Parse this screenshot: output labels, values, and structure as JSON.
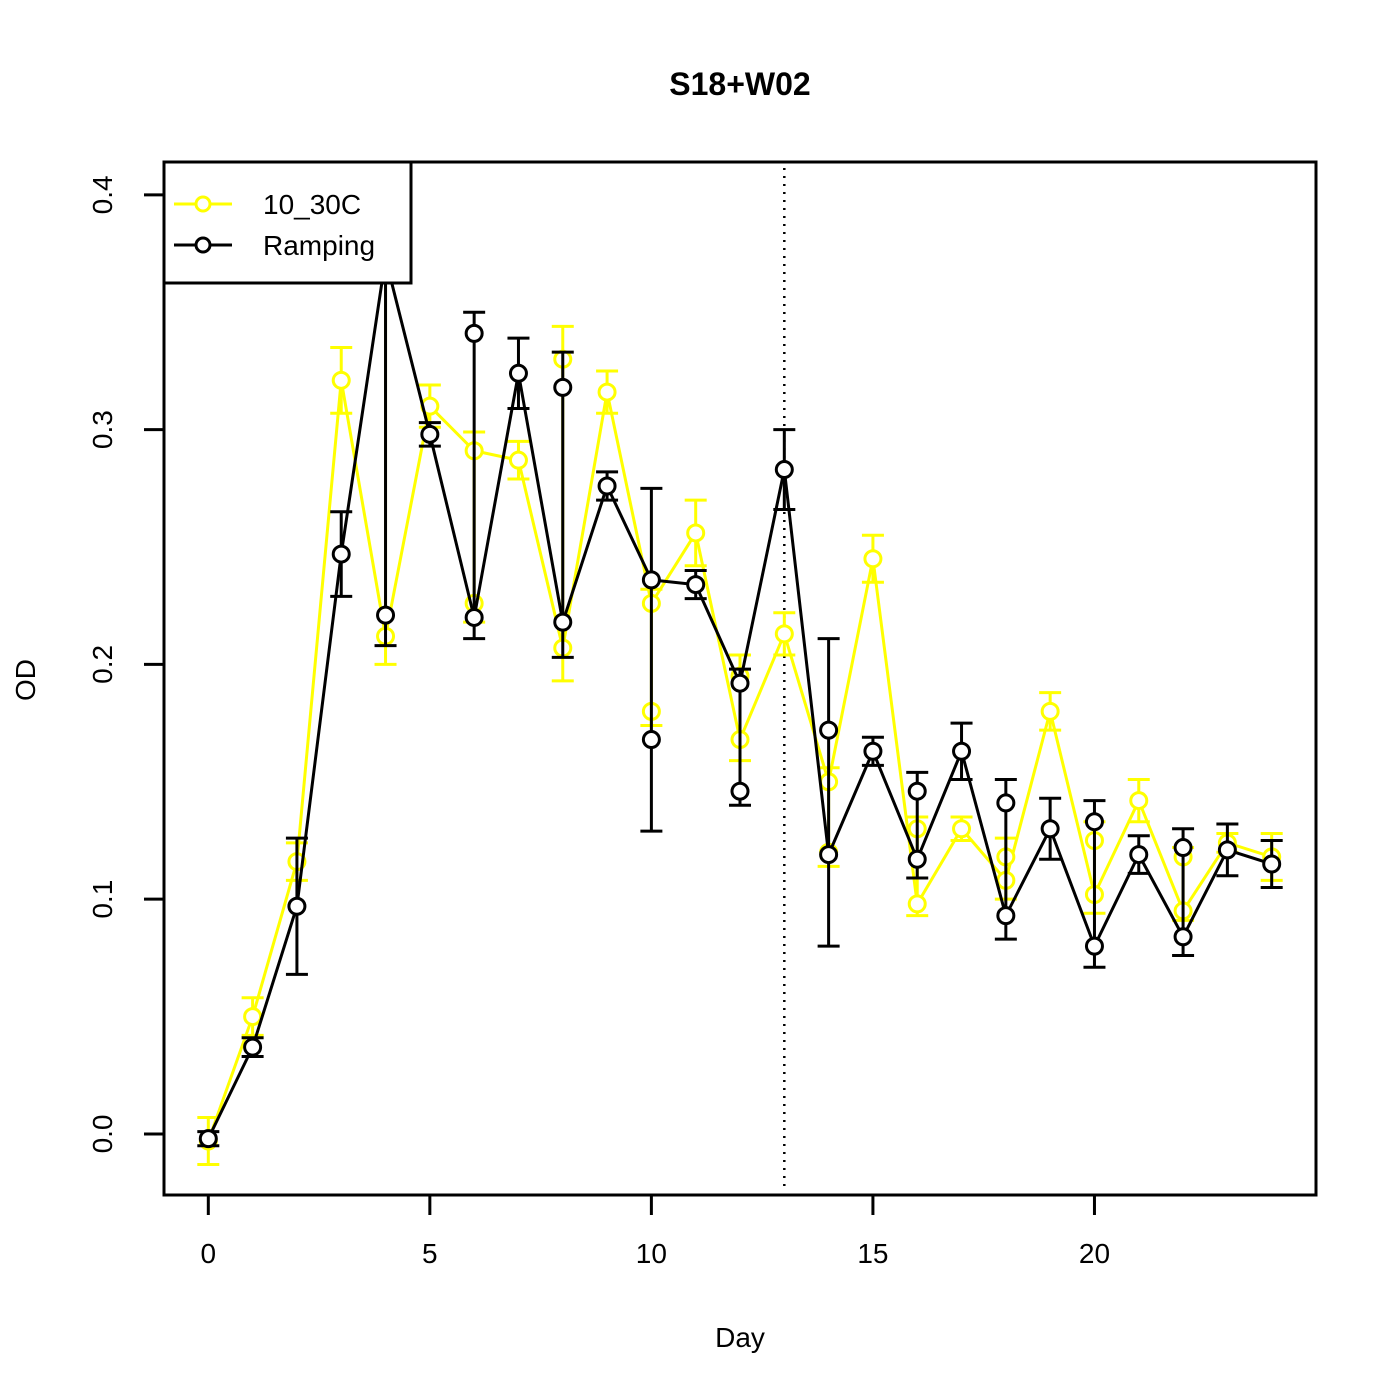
{
  "chart_data": {
    "type": "line",
    "title": "S18+W02",
    "xlabel": "Day",
    "ylabel": "OD",
    "xlim": [
      -1,
      25
    ],
    "ylim": [
      -0.026,
      0.414
    ],
    "x_ticks": [
      0,
      5,
      10,
      15,
      20
    ],
    "x_tick_labels": [
      "0",
      "5",
      "10",
      "15",
      "20"
    ],
    "y_ticks": [
      0.0,
      0.1,
      0.2,
      0.3,
      0.4
    ],
    "y_tick_labels": [
      "0.0",
      "0.1",
      "0.2",
      "0.3",
      "0.4"
    ],
    "grid": false,
    "legend": {
      "position": "top-left"
    },
    "reference_line": {
      "x": 13,
      "style": "dotted"
    },
    "series": [
      {
        "name": "10_30C",
        "color": "#ffff00",
        "x": [
          0,
          1,
          2,
          3,
          4,
          5,
          6,
          7,
          8,
          9,
          10,
          11,
          12,
          13,
          14,
          15,
          16,
          17,
          18,
          19,
          20,
          21,
          22,
          23,
          24
        ],
        "y": [
          -0.003,
          0.05,
          0.116,
          0.321,
          0.212,
          0.31,
          0.291,
          0.287,
          0.207,
          0.316,
          0.226,
          0.256,
          0.168,
          0.213,
          0.15,
          0.245,
          0.098,
          0.13,
          0.108,
          0.18,
          0.102,
          0.142,
          0.095,
          0.124,
          0.118
        ],
        "y_alt": [
          null,
          null,
          null,
          null,
          0.385,
          null,
          0.226,
          null,
          0.33,
          null,
          0.18,
          null,
          0.195,
          null,
          0.12,
          null,
          0.13,
          null,
          0.118,
          null,
          0.125,
          null,
          0.118,
          null,
          null
        ],
        "err": [
          0.01,
          0.008,
          0.008,
          0.014,
          0.012,
          0.009,
          0.008,
          0.008,
          0.014,
          0.009,
          0.006,
          0.014,
          0.009,
          0.009,
          0.006,
          0.01,
          0.005,
          0.005,
          0.008,
          0.008,
          0.008,
          0.009,
          0.004,
          0.004,
          0.01
        ]
      },
      {
        "name": "Ramping",
        "color": "#000000",
        "x": [
          0,
          1,
          2,
          3,
          4,
          5,
          6,
          7,
          8,
          9,
          10,
          11,
          12,
          13,
          14,
          15,
          16,
          17,
          18,
          19,
          20,
          21,
          22,
          23,
          24
        ],
        "y": [
          -0.002,
          0.037,
          0.097,
          0.247,
          0.373,
          0.298,
          0.22,
          0.324,
          0.218,
          0.276,
          0.236,
          0.234,
          0.192,
          0.283,
          0.119,
          0.163,
          0.117,
          0.163,
          0.093,
          0.13,
          0.08,
          0.119,
          0.084,
          0.121,
          0.115
        ],
        "y_alt": [
          null,
          null,
          null,
          null,
          0.221,
          null,
          0.341,
          null,
          0.318,
          null,
          0.168,
          null,
          0.146,
          null,
          0.172,
          null,
          0.146,
          null,
          0.141,
          null,
          0.133,
          null,
          0.122,
          null,
          null
        ],
        "err": [
          0.003,
          0.004,
          0.029,
          0.018,
          0.013,
          0.005,
          0.009,
          0.015,
          0.015,
          0.006,
          0.039,
          0.006,
          0.006,
          0.017,
          0.039,
          0.006,
          0.008,
          0.012,
          0.01,
          0.013,
          0.009,
          0.008,
          0.008,
          0.011,
          0.01
        ]
      }
    ]
  }
}
